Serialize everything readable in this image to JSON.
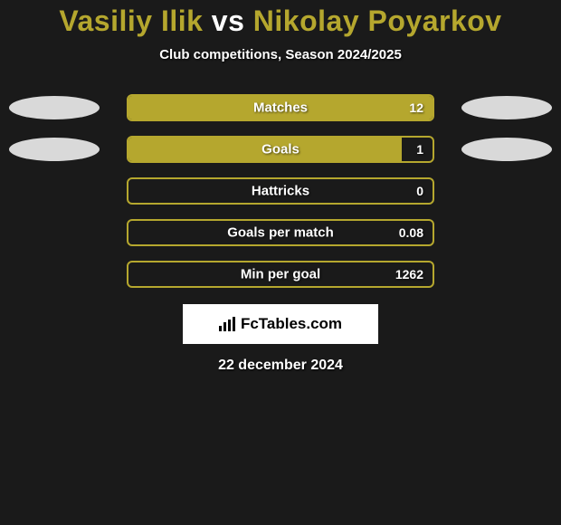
{
  "title": {
    "player1": "Vasiliy Ilik",
    "vs": "vs",
    "player2": "Nikolay Poyarkov"
  },
  "subtitle": "Club competitions, Season 2024/2025",
  "colors": {
    "border": "#b5a72e",
    "fill": "#b5a72e",
    "background": "#1a1a1a",
    "oval": "#d9d9d9",
    "text": "#ffffff"
  },
  "rows": [
    {
      "label": "Matches",
      "value": "12",
      "fill_pct": 100,
      "show_ovals": true
    },
    {
      "label": "Goals",
      "value": "1",
      "fill_pct": 90,
      "show_ovals": true
    },
    {
      "label": "Hattricks",
      "value": "0",
      "fill_pct": 0,
      "show_ovals": false
    },
    {
      "label": "Goals per match",
      "value": "0.08",
      "fill_pct": 0,
      "show_ovals": false
    },
    {
      "label": "Min per goal",
      "value": "1262",
      "fill_pct": 0,
      "show_ovals": false
    }
  ],
  "logo": "FcTables.com",
  "date": "22 december 2024"
}
